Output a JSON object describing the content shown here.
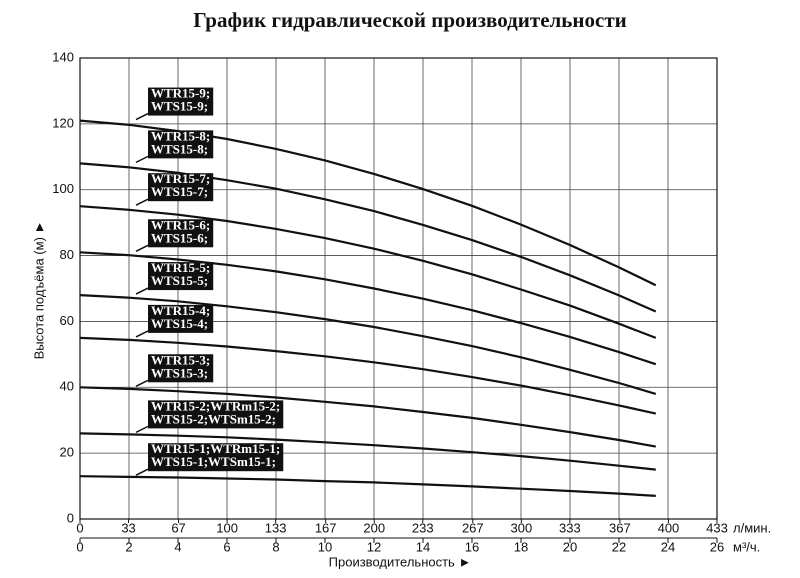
{
  "chart_data": {
    "type": "line",
    "title": "График гидравлической производительности",
    "y_label": "Высота подъёма (м) ►",
    "x_label": "Производительность ►",
    "x_unit": "м³/ч.",
    "x2_unit": "л/мин.",
    "x": [
      0,
      2,
      4,
      6,
      8,
      10,
      12,
      14,
      16,
      18,
      20,
      22,
      23.5
    ],
    "xlim": [
      0,
      26
    ],
    "xticks": [
      0,
      2,
      4,
      6,
      8,
      10,
      12,
      14,
      16,
      18,
      20,
      22,
      24,
      26
    ],
    "x2lim": [
      0,
      433
    ],
    "x2ticks": [
      0,
      33,
      67,
      100,
      133,
      167,
      200,
      233,
      267,
      300,
      333,
      367,
      400,
      433
    ],
    "ylim": [
      0,
      140
    ],
    "yticks": [
      0,
      20,
      40,
      60,
      80,
      100,
      120,
      140
    ],
    "grid": true,
    "color": "#111111",
    "series": [
      {
        "name": [
          "WTR15-9;",
          "WTS15-9;"
        ],
        "values": [
          121,
          119.7,
          117.8,
          115.4,
          112.4,
          108.9,
          104.8,
          100.2,
          95.1,
          89.4,
          83.2,
          76.4,
          71
        ]
      },
      {
        "name": [
          "WTR15-8;",
          "WTS15-8;"
        ],
        "values": [
          108,
          106.8,
          105.1,
          102.9,
          100.3,
          97.1,
          93.5,
          89.3,
          84.7,
          79.6,
          74.0,
          67.9,
          63
        ]
      },
      {
        "name": [
          "WTR15-7;",
          "WTS15-7;"
        ],
        "values": [
          95,
          93.9,
          92.4,
          90.5,
          88.1,
          85.3,
          82.1,
          78.4,
          74.3,
          69.7,
          64.8,
          59.3,
          55
        ]
      },
      {
        "name": [
          "WTR15-6;",
          "WTS15-6;"
        ],
        "values": [
          81,
          80.1,
          78.8,
          77.2,
          75.2,
          72.8,
          70.0,
          66.9,
          63.4,
          59.5,
          55.3,
          50.7,
          47
        ]
      },
      {
        "name": [
          "WTR15-5;",
          "WTS15-5;"
        ],
        "values": [
          68,
          67.2,
          66.1,
          64.6,
          62.8,
          60.7,
          58.3,
          55.5,
          52.5,
          49.1,
          45.3,
          41.3,
          38
        ]
      },
      {
        "name": [
          "WTR15-4;",
          "WTS15-4;"
        ],
        "values": [
          55,
          54.4,
          53.5,
          52.4,
          51.0,
          49.4,
          47.6,
          45.5,
          43.1,
          40.5,
          37.6,
          34.5,
          32
        ]
      },
      {
        "name": [
          "WTR15-3;",
          "WTS15-3;"
        ],
        "values": [
          40,
          39.5,
          38.8,
          38.0,
          36.9,
          35.6,
          34.2,
          32.5,
          30.7,
          28.6,
          26.4,
          24.0,
          22
        ]
      },
      {
        "name": [
          "WTR15-2;WTRm15-2;",
          "WTS15-2;WTSm15-2;"
        ],
        "values": [
          26,
          25.7,
          25.3,
          24.8,
          24.1,
          23.3,
          22.4,
          21.4,
          20.3,
          19.1,
          17.7,
          16.2,
          15
        ]
      },
      {
        "name": [
          "WTR15-1;WTRm15-1;",
          "WTS15-1;WTSm15-1;"
        ],
        "values": [
          13,
          12.8,
          12.6,
          12.3,
          12.0,
          11.5,
          11.1,
          10.5,
          9.9,
          9.2,
          8.5,
          7.7,
          7
        ]
      }
    ]
  }
}
